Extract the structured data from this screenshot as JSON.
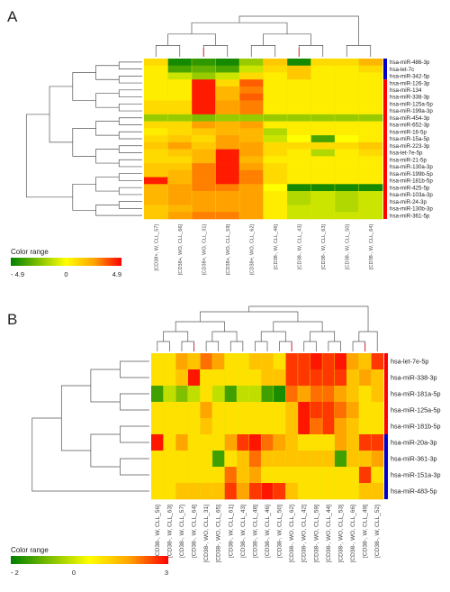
{
  "chart_data": [
    {
      "panel": "A",
      "type": "heatmap",
      "title": "",
      "rows": [
        "hsa-miR-486-3p",
        "hsa-let-7c",
        "hsa-miR-342-5p",
        "hsa-miR-126-3p",
        "hsa-miR-134",
        "hsa-miR-338-3p",
        "hsa-miR-125a-5p",
        "hsa-miR-199a-3p",
        "hsa-miR-454-3p",
        "hsa-miR-652-3p",
        "hsa-miR-16-5p",
        "hsa-miR-15a-5p",
        "hsa-miR-223-3p",
        "hsa-let-7e-5p",
        "hsa-miR-21-5p",
        "hsa-miR-130a-3p",
        "hsa-miR-199b-5p",
        "hsa-miR-181b-5p",
        "hsa-miR-425-5p",
        "hsa-miR-103a-3p",
        "hsa-miR-24-3p",
        "hsa-miR-130b-3p",
        "hsa-miR-361-5p"
      ],
      "columns": [
        "[CD38+, W, CLL_57]",
        "[CD38+, WO, CLL_66]",
        "[CD38+, WO, CLL_31]",
        "[CD38+, WO, CLL_59]",
        "[CD38+, WO, CLL_62]",
        "[CD38-, W, CLL_46]",
        "[CD38-, W, CLL_43]",
        "[CD38-, W, CLL_63]",
        "[CD38-, W, CLL_50]",
        "[CD38-, W, CLL_64]"
      ],
      "values": [
        [
          1.0,
          -4.5,
          -4.0,
          -4.5,
          -2.0,
          1.5,
          -4.5,
          1.0,
          1.0,
          2.0
        ],
        [
          0.5,
          -3.5,
          -3.0,
          -3.5,
          -1.0,
          1.0,
          1.5,
          0.5,
          0.5,
          1.0
        ],
        [
          0.5,
          -1.0,
          -2.0,
          -1.0,
          1.0,
          0.5,
          1.5,
          0.5,
          0.5,
          0.5
        ],
        [
          0.5,
          0.5,
          4.5,
          1.0,
          3.5,
          0.5,
          0.5,
          0.5,
          0.5,
          0.5
        ],
        [
          0.5,
          0.5,
          4.5,
          2.0,
          3.0,
          0.5,
          0.5,
          0.5,
          0.5,
          0.5
        ],
        [
          0.5,
          0.5,
          4.5,
          2.0,
          3.5,
          0.5,
          0.5,
          0.5,
          0.5,
          0.5
        ],
        [
          1.0,
          1.0,
          4.5,
          2.5,
          3.0,
          0.5,
          0.5,
          0.5,
          0.5,
          0.5
        ],
        [
          1.0,
          1.0,
          4.5,
          2.5,
          3.0,
          0.5,
          0.5,
          0.5,
          0.5,
          0.5
        ],
        [
          -2.0,
          -2.0,
          -2.5,
          -2.0,
          -2.0,
          -2.0,
          -2.0,
          -2.0,
          -2.0,
          -2.0
        ],
        [
          1.0,
          1.0,
          2.5,
          2.0,
          2.5,
          0.5,
          0.5,
          0.5,
          0.5,
          0.5
        ],
        [
          0.5,
          1.0,
          1.5,
          2.0,
          2.0,
          -1.5,
          0.5,
          0.5,
          0.5,
          0.5
        ],
        [
          1.0,
          1.5,
          1.0,
          2.5,
          2.0,
          -1.0,
          0.0,
          -3.5,
          0.0,
          0.5
        ],
        [
          1.5,
          2.5,
          1.5,
          2.5,
          2.5,
          1.0,
          1.0,
          1.0,
          1.0,
          1.5
        ],
        [
          1.0,
          1.5,
          2.0,
          4.5,
          2.5,
          1.0,
          0.5,
          -1.5,
          0.5,
          1.0
        ],
        [
          1.0,
          1.0,
          2.0,
          4.5,
          2.0,
          0.5,
          0.5,
          0.5,
          0.5,
          0.5
        ],
        [
          1.5,
          1.5,
          3.0,
          4.5,
          2.5,
          1.0,
          0.5,
          0.5,
          0.5,
          0.5
        ],
        [
          1.5,
          2.0,
          3.0,
          4.5,
          3.0,
          1.0,
          0.5,
          0.5,
          0.5,
          0.5
        ],
        [
          4.5,
          2.0,
          3.0,
          4.5,
          3.0,
          1.0,
          0.5,
          0.5,
          0.5,
          0.5
        ],
        [
          2.0,
          2.5,
          3.0,
          3.0,
          2.5,
          0.0,
          -4.5,
          -4.5,
          -4.5,
          -4.5
        ],
        [
          2.0,
          2.5,
          2.5,
          2.5,
          2.5,
          0.5,
          -1.5,
          -1.0,
          -1.5,
          -1.0
        ],
        [
          2.0,
          2.5,
          2.5,
          2.5,
          2.5,
          0.5,
          -1.5,
          -1.0,
          -1.5,
          -1.0
        ],
        [
          1.5,
          2.0,
          2.5,
          2.5,
          2.5,
          0.5,
          -1.0,
          -1.0,
          -1.5,
          -1.0
        ],
        [
          1.5,
          2.5,
          3.0,
          3.0,
          2.5,
          0.5,
          -1.0,
          -1.0,
          -1.0,
          -1.0
        ]
      ],
      "legend": {
        "title": "Color range",
        "min": -4.9,
        "mid": 0,
        "max": 4.9,
        "labels": [
          "- 4.9",
          "0",
          "4.9"
        ]
      },
      "colors": {
        "low": "#008000",
        "mid": "#ffff00",
        "high": "#ff0000",
        "bar_top": "#0000cc",
        "bar_bottom": "#ff0000",
        "col_top": "#cc3333"
      },
      "row_group_split": 3
    },
    {
      "panel": "B",
      "type": "heatmap",
      "title": "",
      "rows": [
        "hsa-let-7e-5p",
        "hsa-miR-338-3p",
        "hsa-miR-181a-5p",
        "hsa-miR-125a-5p",
        "hsa-miR-181b-5p",
        "hsa-miR-20a-3p",
        "hsa-miR-361-3p",
        "hsa-miR-151a-3p",
        "hsa-miR-483-5p"
      ],
      "columns": [
        "[CD38-, W, CLL_56]",
        "[CD38-, W, CLL_63]",
        "[CD38-, W, CLL_57]",
        "[CD38-, W, CLL_64]",
        "[CD38-, WO, CLL_31]",
        "[CD38-, WO, CLL_65]",
        "[CD38-, W, CLL_61]",
        "[CD38-, W, CLL_43]",
        "[CD38-, W, CLL_48]",
        "[CD38-, W, CLL_46]",
        "[CD38-, W, CLL_50]",
        "[CD38-, WO, CLL_62]",
        "[CD38-, WO, CLL_42]",
        "[CD38-, WO, CLL_59]",
        "[CD38-, WO, CLL_44]",
        "[CD38-, WO, CLL_53]",
        "[CD38-, WO, CLL_66]",
        "[CD38-, W, CLL_49]",
        "[CD38-, W, CLL_52]"
      ],
      "values": [
        [
          0.5,
          0.5,
          1.5,
          1.0,
          2.0,
          1.5,
          0.5,
          0.5,
          1.0,
          1.0,
          0.5,
          2.5,
          2.5,
          2.8,
          2.5,
          2.8,
          1.5,
          1.0,
          2.5
        ],
        [
          0.5,
          0.5,
          1.0,
          2.8,
          0.5,
          0.5,
          0.5,
          0.5,
          0.5,
          1.0,
          1.0,
          2.5,
          2.5,
          2.5,
          2.5,
          2.5,
          1.0,
          1.5,
          1.0
        ],
        [
          -1.5,
          -0.5,
          -1.0,
          -0.5,
          0.5,
          -0.5,
          -1.5,
          -0.5,
          -0.5,
          -1.5,
          -1.8,
          2.0,
          1.5,
          2.0,
          2.0,
          1.5,
          1.0,
          0.5,
          1.0
        ],
        [
          0.5,
          0.5,
          0.5,
          0.5,
          1.5,
          0.5,
          0.5,
          0.5,
          0.5,
          0.5,
          0.5,
          1.0,
          2.8,
          2.5,
          2.5,
          2.0,
          1.5,
          0.5,
          0.5
        ],
        [
          0.5,
          0.5,
          0.5,
          0.5,
          1.0,
          0.5,
          0.5,
          0.5,
          0.5,
          0.5,
          0.5,
          1.0,
          2.8,
          2.0,
          2.5,
          1.5,
          1.0,
          0.5,
          0.5
        ],
        [
          2.8,
          0.5,
          1.5,
          0.5,
          0.5,
          0.5,
          1.5,
          2.5,
          2.8,
          2.0,
          1.5,
          1.0,
          0.5,
          0.5,
          0.5,
          1.5,
          1.0,
          2.5,
          2.5
        ],
        [
          0.5,
          0.5,
          0.5,
          0.5,
          0.5,
          -1.5,
          0.5,
          1.0,
          2.0,
          1.0,
          1.0,
          1.0,
          1.0,
          1.0,
          1.0,
          -1.5,
          1.0,
          1.0,
          1.5
        ],
        [
          0.5,
          0.5,
          0.5,
          0.5,
          0.5,
          0.5,
          2.0,
          1.0,
          1.5,
          0.5,
          0.5,
          0.5,
          0.5,
          0.5,
          0.5,
          0.5,
          0.5,
          2.5,
          0.5
        ],
        [
          0.5,
          0.5,
          1.0,
          1.0,
          1.0,
          1.0,
          2.5,
          1.5,
          2.5,
          2.8,
          2.5,
          1.0,
          0.5,
          0.5,
          0.5,
          0.5,
          0.5,
          1.0,
          1.0
        ]
      ],
      "legend": {
        "title": "Color range",
        "min": -2,
        "mid": 0,
        "max": 3,
        "labels": [
          "- 2",
          "0",
          "3"
        ]
      },
      "colors": {
        "low": "#008000",
        "mid": "#ffff00",
        "high": "#ff0000",
        "bar_top": "#ff0000",
        "bar_bottom": "#0000cc",
        "col_top": "#cc3333"
      },
      "row_group_split": 5
    }
  ]
}
